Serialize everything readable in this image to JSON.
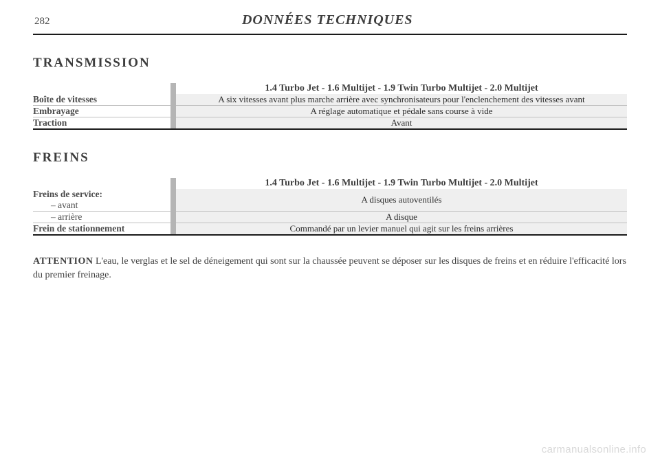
{
  "page_number": "282",
  "header_title": "DONNÉES TECHNIQUES",
  "sections": {
    "transmission": {
      "title": "TRANSMISSION",
      "column_header": "1.4 Turbo Jet - 1.6 Multijet - 1.9 Twin Turbo Multijet - 2.0 Multijet",
      "rows": [
        {
          "label": "Boîte de vitesses",
          "value": "A six vitesses avant plus marche arrière avec synchronisateurs pour l'enclenchement des vitesses avant"
        },
        {
          "label": "Embrayage",
          "value": "A réglage automatique et pédale sans course à vide"
        },
        {
          "label": "Traction",
          "value": "Avant"
        }
      ]
    },
    "freins": {
      "title": "FREINS",
      "column_header": "1.4 Turbo Jet - 1.6 Multijet - 1.9 Twin Turbo Multijet - 2.0 Multijet",
      "group_label": "Freins de service:",
      "rows": [
        {
          "label": "– avant",
          "value": "A disques autoventilés",
          "indent": true
        },
        {
          "label": "– arrière",
          "value": "A disque",
          "indent": true
        },
        {
          "label": "Frein de stationnement",
          "value": "Commandé par un levier manuel qui agit sur les freins arrières",
          "indent": false
        }
      ]
    }
  },
  "footnote": {
    "lead": "ATTENTION",
    "text": " L'eau, le verglas et le sel de déneigement qui sont sur la chaussée peuvent se déposer sur les disques de freins et en réduire l'efficacité lors du premier freinage."
  },
  "watermark": "carmanualsonline.info"
}
